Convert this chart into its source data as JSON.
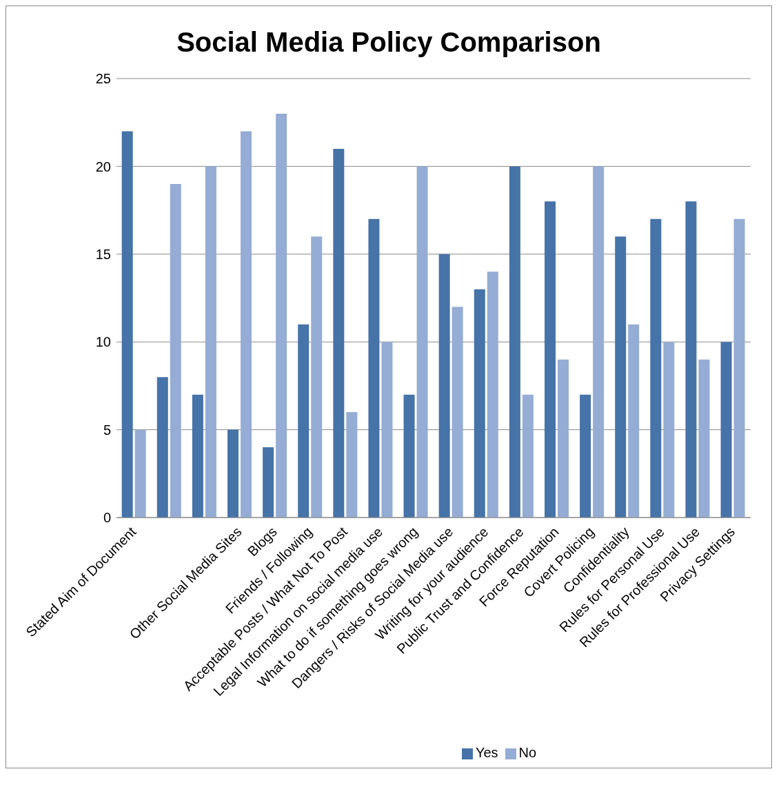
{
  "chart_data": {
    "type": "bar",
    "title": "Social Media Policy Comparison",
    "categories": [
      "Stated Aim of Document",
      null,
      null,
      "Other Social Media Sites",
      "Blogs",
      "Friends / Following",
      "Acceptable Posts / What Not To Post",
      "Legal Information on social media use",
      "What to do if something goes wrong",
      "Dangers / Risks of Social Media use",
      "Writing for your audience",
      "Public Trust and Confidence",
      "Force Reputation",
      "Covert Policing",
      "Confidentiality",
      "Rules for Personal Use",
      "Rules for Professional Use",
      "Privacy Settings"
    ],
    "series": [
      {
        "name": "Yes",
        "color": "#4673a8",
        "values": [
          22,
          8,
          7,
          5,
          4,
          11,
          21,
          17,
          7,
          15,
          13,
          20,
          18,
          7,
          16,
          17,
          18,
          10
        ]
      },
      {
        "name": "No",
        "color": "#95acd4",
        "values": [
          5,
          19,
          20,
          22,
          23,
          16,
          6,
          10,
          20,
          12,
          14,
          7,
          9,
          20,
          11,
          10,
          9,
          17
        ]
      }
    ],
    "ylim": [
      0,
      25
    ],
    "yticks": [
      0,
      5,
      10,
      15,
      20,
      25
    ],
    "grid": "y",
    "legend": "bottom"
  }
}
